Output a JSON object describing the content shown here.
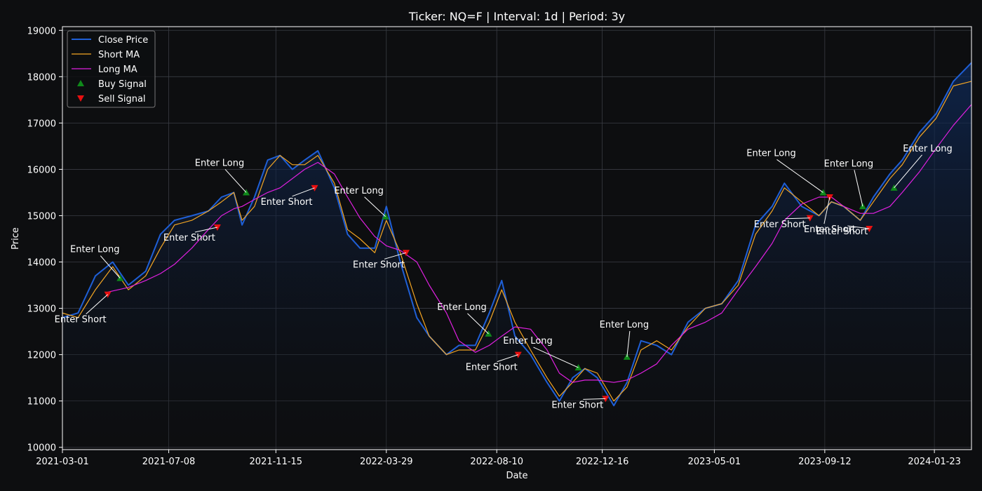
{
  "chart_data": {
    "type": "line",
    "title": "Ticker: NQ=F | Interval: 1d | Period: 3y",
    "xlabel": "Date",
    "ylabel": "Price",
    "x_range": [
      "2021-03-01",
      "2024-03-08"
    ],
    "ylim": [
      9950,
      19080
    ],
    "grid": true,
    "legend_position": "top-left",
    "x_ticks": [
      "2021-03-01",
      "2021-07-08",
      "2021-11-15",
      "2022-03-29",
      "2022-08-10",
      "2022-12-16",
      "2023-05-01",
      "2023-09-12",
      "2024-01-23"
    ],
    "y_ticks": [
      10000,
      11000,
      12000,
      13000,
      14000,
      15000,
      16000,
      17000,
      18000,
      19000
    ],
    "series": [
      {
        "name": "Close Price",
        "color": "#1f5fd6",
        "style": "close",
        "x": [
          "2021-03-01",
          "2021-03-20",
          "2021-04-10",
          "2021-05-01",
          "2021-05-20",
          "2021-06-10",
          "2021-06-28",
          "2021-07-15",
          "2021-08-05",
          "2021-08-25",
          "2021-09-10",
          "2021-09-25",
          "2021-10-05",
          "2021-10-20",
          "2021-11-05",
          "2021-11-20",
          "2021-12-05",
          "2021-12-20",
          "2022-01-05",
          "2022-01-25",
          "2022-02-10",
          "2022-02-25",
          "2022-03-15",
          "2022-03-29",
          "2022-04-15",
          "2022-05-05",
          "2022-05-20",
          "2022-06-10",
          "2022-06-25",
          "2022-07-15",
          "2022-08-01",
          "2022-08-16",
          "2022-09-01",
          "2022-09-20",
          "2022-10-10",
          "2022-10-25",
          "2022-11-10",
          "2022-11-25",
          "2022-12-10",
          "2022-12-30",
          "2023-01-15",
          "2023-02-01",
          "2023-02-20",
          "2023-03-10",
          "2023-03-30",
          "2023-04-20",
          "2023-05-10",
          "2023-05-30",
          "2023-06-20",
          "2023-07-10",
          "2023-07-25",
          "2023-08-15",
          "2023-09-05",
          "2023-09-20",
          "2023-10-05",
          "2023-10-25",
          "2023-11-10",
          "2023-11-30",
          "2023-12-15",
          "2024-01-05",
          "2024-01-25",
          "2024-02-15",
          "2024-03-08"
        ],
        "values": [
          12800,
          12900,
          13700,
          14000,
          13500,
          13800,
          14600,
          14900,
          15000,
          15100,
          15400,
          15500,
          14800,
          15400,
          16200,
          16300,
          16000,
          16200,
          16400,
          15600,
          14600,
          14300,
          14300,
          15200,
          14000,
          12800,
          12400,
          12000,
          12200,
          12200,
          12900,
          13600,
          12400,
          12000,
          11400,
          11000,
          11500,
          11700,
          11500,
          10900,
          11400,
          12300,
          12200,
          12000,
          12700,
          13000,
          13100,
          13600,
          14800,
          15200,
          15700,
          15200,
          15000,
          15300,
          15200,
          14900,
          15400,
          15900,
          16200,
          16800,
          17200,
          17900,
          18300
        ]
      },
      {
        "name": "Short MA",
        "color": "#f5a623",
        "style": "thin",
        "x": [
          "2021-03-01",
          "2021-03-20",
          "2021-04-10",
          "2021-05-01",
          "2021-05-20",
          "2021-06-10",
          "2021-06-28",
          "2021-07-15",
          "2021-08-05",
          "2021-08-25",
          "2021-09-10",
          "2021-09-25",
          "2021-10-05",
          "2021-10-20",
          "2021-11-05",
          "2021-11-20",
          "2021-12-05",
          "2021-12-20",
          "2022-01-05",
          "2022-01-25",
          "2022-02-10",
          "2022-02-25",
          "2022-03-15",
          "2022-03-29",
          "2022-04-15",
          "2022-05-05",
          "2022-05-20",
          "2022-06-10",
          "2022-06-25",
          "2022-07-15",
          "2022-08-01",
          "2022-08-16",
          "2022-09-01",
          "2022-09-20",
          "2022-10-10",
          "2022-10-25",
          "2022-11-10",
          "2022-11-25",
          "2022-12-10",
          "2022-12-30",
          "2023-01-15",
          "2023-02-01",
          "2023-02-20",
          "2023-03-10",
          "2023-03-30",
          "2023-04-20",
          "2023-05-10",
          "2023-05-30",
          "2023-06-20",
          "2023-07-10",
          "2023-07-25",
          "2023-08-15",
          "2023-09-05",
          "2023-09-20",
          "2023-10-05",
          "2023-10-25",
          "2023-11-10",
          "2023-11-30",
          "2023-12-15",
          "2024-01-05",
          "2024-01-25",
          "2024-02-15",
          "2024-03-08"
        ],
        "values": [
          12900,
          12800,
          13400,
          13900,
          13400,
          13700,
          14300,
          14800,
          14900,
          15100,
          15300,
          15500,
          14900,
          15200,
          16000,
          16300,
          16100,
          16100,
          16300,
          15700,
          14700,
          14500,
          14200,
          14900,
          14200,
          13100,
          12400,
          12000,
          12100,
          12100,
          12700,
          13400,
          12700,
          12100,
          11500,
          11100,
          11400,
          11700,
          11600,
          11000,
          11300,
          12100,
          12300,
          12100,
          12600,
          13000,
          13100,
          13500,
          14600,
          15100,
          15600,
          15300,
          15000,
          15300,
          15200,
          14900,
          15300,
          15800,
          16100,
          16700,
          17100,
          17800,
          17900
        ]
      },
      {
        "name": "Long MA",
        "color": "#e020e0",
        "style": "thin",
        "x": [
          "2021-04-25",
          "2021-05-20",
          "2021-06-10",
          "2021-06-28",
          "2021-07-15",
          "2021-08-05",
          "2021-08-25",
          "2021-09-10",
          "2021-09-25",
          "2021-10-05",
          "2021-10-20",
          "2021-11-05",
          "2021-11-20",
          "2021-12-05",
          "2021-12-20",
          "2022-01-05",
          "2022-01-25",
          "2022-02-10",
          "2022-02-25",
          "2022-03-15",
          "2022-03-29",
          "2022-04-15",
          "2022-05-05",
          "2022-05-20",
          "2022-06-10",
          "2022-06-25",
          "2022-07-15",
          "2022-08-01",
          "2022-08-16",
          "2022-09-01",
          "2022-09-20",
          "2022-10-10",
          "2022-10-25",
          "2022-11-10",
          "2022-11-25",
          "2022-12-10",
          "2022-12-30",
          "2023-01-15",
          "2023-02-01",
          "2023-02-20",
          "2023-03-10",
          "2023-03-30",
          "2023-04-20",
          "2023-05-10",
          "2023-05-30",
          "2023-06-20",
          "2023-07-10",
          "2023-07-25",
          "2023-08-15",
          "2023-09-05",
          "2023-09-20",
          "2023-10-05",
          "2023-10-25",
          "2023-11-10",
          "2023-11-30",
          "2023-12-15",
          "2024-01-05",
          "2024-01-25",
          "2024-02-15",
          "2024-03-08"
        ],
        "values": [
          13350,
          13450,
          13600,
          13750,
          13950,
          14300,
          14700,
          15000,
          15150,
          15200,
          15350,
          15500,
          15600,
          15800,
          16000,
          16150,
          15900,
          15400,
          14950,
          14550,
          14350,
          14250,
          14000,
          13500,
          12900,
          12300,
          12050,
          12200,
          12400,
          12600,
          12550,
          12100,
          11600,
          11400,
          11450,
          11450,
          11400,
          11450,
          11600,
          11800,
          12200,
          12550,
          12700,
          12900,
          13400,
          13900,
          14400,
          14900,
          15250,
          15400,
          15400,
          15200,
          15050,
          15050,
          15200,
          15500,
          15950,
          16450,
          16950,
          17400
        ]
      }
    ],
    "buy_signals": [
      {
        "date": "2021-05-10",
        "price": 13650,
        "label": "Enter Long"
      },
      {
        "date": "2021-10-10",
        "price": 15500,
        "label": "Enter Long"
      },
      {
        "date": "2022-03-28",
        "price": 14980,
        "label": "Enter Long"
      },
      {
        "date": "2022-07-31",
        "price": 12450,
        "label": "Enter Long"
      },
      {
        "date": "2022-11-17",
        "price": 11720,
        "label": "Enter Long"
      },
      {
        "date": "2023-01-15",
        "price": 11950,
        "label": "Enter Long"
      },
      {
        "date": "2023-09-10",
        "price": 15500,
        "label": "Enter Long"
      },
      {
        "date": "2023-10-28",
        "price": 15200,
        "label": "Enter Long"
      },
      {
        "date": "2023-12-05",
        "price": 15600,
        "label": "Enter Long"
      }
    ],
    "sell_signals": [
      {
        "date": "2021-04-25",
        "price": 13300,
        "label": "Enter Short"
      },
      {
        "date": "2021-09-05",
        "price": 14750,
        "label": "Enter Short"
      },
      {
        "date": "2022-01-01",
        "price": 15600,
        "label": "Enter Short"
      },
      {
        "date": "2022-04-22",
        "price": 14200,
        "label": "Enter Short"
      },
      {
        "date": "2022-09-05",
        "price": 12000,
        "label": "Enter Short"
      },
      {
        "date": "2022-12-20",
        "price": 11050,
        "label": "Enter Short"
      },
      {
        "date": "2023-08-25",
        "price": 14950,
        "label": "Enter Short"
      },
      {
        "date": "2023-09-18",
        "price": 15400,
        "label": "Enter Short"
      },
      {
        "date": "2023-11-05",
        "price": 14720,
        "label": "Enter Short"
      }
    ],
    "legend": {
      "entries": [
        {
          "label": "Close Price",
          "kind": "line",
          "color": "#1f5fd6"
        },
        {
          "label": "Short MA",
          "kind": "line",
          "color": "#f5a623"
        },
        {
          "label": "Long MA",
          "kind": "line",
          "color": "#e020e0"
        },
        {
          "label": "Buy Signal",
          "kind": "up-triangle",
          "color": "#0f8a1a"
        },
        {
          "label": "Sell Signal",
          "kind": "down-triangle",
          "color": "#e81010"
        }
      ]
    }
  }
}
